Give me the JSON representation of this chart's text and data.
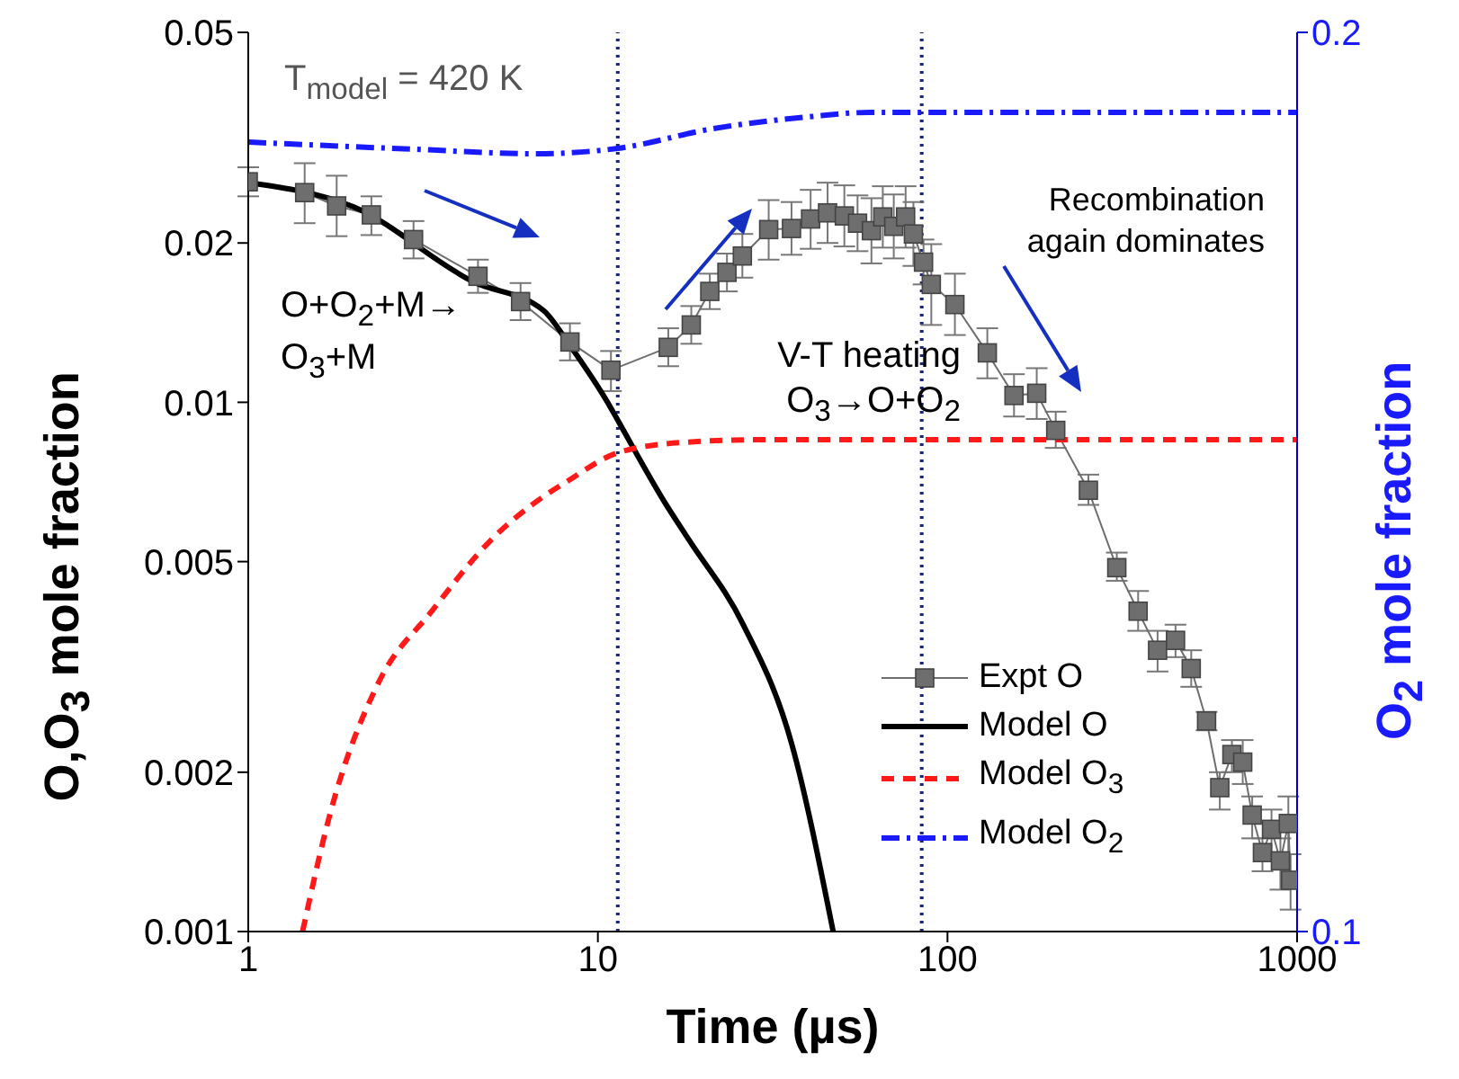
{
  "chart_data": {
    "type": "line",
    "xlabel": "Time (µs)",
    "ylabel": "O,O$_{3}$ mole fraction",
    "y2label": "O$_{2}$ mole fraction",
    "log": "xy",
    "xlim": [
      1,
      1000
    ],
    "xticks": [
      1,
      10,
      100,
      1000
    ],
    "ylim": [
      0.001,
      0.05
    ],
    "yticks": [
      0.001,
      0.002,
      0.005,
      0.01,
      0.02,
      0.05
    ],
    "y2lim": [
      0.1,
      0.2
    ],
    "y2ticks": [
      0.1,
      0.2
    ],
    "legend": "bottom right",
    "series": [
      {
        "name": "Expt O",
        "color": "#6e6e6e",
        "marker": "square",
        "line_style": "solid",
        "x": [
          1,
          1.45,
          1.79,
          2.25,
          2.97,
          4.54,
          6.01,
          8.32,
          10.9,
          15.9,
          18.5,
          20.9,
          23.4,
          25.9,
          30.8,
          35.8,
          40.6,
          45.4,
          50.7,
          55.3,
          60.6,
          65.3,
          70.2,
          75.9,
          79.9,
          85.4,
          89.9,
          105,
          130,
          155,
          180,
          204,
          253,
          305,
          351,
          399,
          449,
          498,
          551,
          601,
          651,
          699,
          744,
          796,
          845,
          896,
          944,
          958
        ],
        "values": [
          0.0261,
          0.0249,
          0.0235,
          0.0226,
          0.0203,
          0.0173,
          0.0155,
          0.013,
          0.0115,
          0.0127,
          0.014,
          0.0162,
          0.0176,
          0.0189,
          0.0212,
          0.0213,
          0.0222,
          0.0228,
          0.0225,
          0.0218,
          0.0211,
          0.0224,
          0.0215,
          0.0224,
          0.0208,
          0.0184,
          0.0167,
          0.0153,
          0.0124,
          0.0103,
          0.0104,
          0.00885,
          0.00682,
          0.00487,
          0.00403,
          0.0034,
          0.00355,
          0.00314,
          0.0025,
          0.00187,
          0.00216,
          0.00209,
          0.00166,
          0.00141,
          0.00156,
          0.00136,
          0.0016,
          0.00125
        ],
        "errors": [
          [
            0.0245,
            0.0278
          ],
          [
            0.0218,
            0.0283
          ],
          [
            0.0206,
            0.0268
          ],
          [
            0.0207,
            0.0245
          ],
          [
            0.0187,
            0.022
          ],
          [
            0.0161,
            0.0186
          ],
          [
            0.0143,
            0.0168
          ],
          [
            0.012,
            0.0141
          ],
          [
            0.0105,
            0.0125
          ],
          [
            0.0117,
            0.0138
          ],
          [
            0.0129,
            0.0152
          ],
          [
            0.015,
            0.0175
          ],
          [
            0.0162,
            0.0191
          ],
          [
            0.0172,
            0.0208
          ],
          [
            0.0186,
            0.0241
          ],
          [
            0.019,
            0.0239
          ],
          [
            0.0195,
            0.0252
          ],
          [
            0.02,
            0.026
          ],
          [
            0.0197,
            0.0257
          ],
          [
            0.0193,
            0.0246
          ],
          [
            0.0183,
            0.0243
          ],
          [
            0.0196,
            0.0256
          ],
          [
            0.0187,
            0.0247
          ],
          [
            0.0196,
            0.0256
          ],
          [
            0.0181,
            0.0239
          ],
          [
            0.0167,
            0.0203
          ],
          [
            0.014,
            0.0199
          ],
          [
            0.0134,
            0.0175
          ],
          [
            0.0111,
            0.0138
          ],
          [
            0.0094,
            0.0113
          ],
          [
            0.0093,
            0.0116
          ],
          [
            0.0082,
            0.0096
          ],
          [
            0.0064,
            0.0073
          ],
          [
            0.0046,
            0.0052
          ],
          [
            0.0037,
            0.0044
          ],
          [
            0.0031,
            0.0037
          ],
          [
            0.0033,
            0.0038
          ],
          [
            0.0029,
            0.0034
          ],
          [
            0.0024,
            0.0026
          ],
          [
            0.0017,
            0.002
          ],
          [
            0.002,
            0.0023
          ],
          [
            0.0019,
            0.0023
          ],
          [
            0.0015,
            0.0018
          ],
          [
            0.0013,
            0.0015
          ],
          [
            0.0014,
            0.0017
          ],
          [
            0.0012,
            0.0015
          ],
          [
            0.0014,
            0.0018
          ],
          [
            0.0011,
            0.0014
          ]
        ]
      },
      {
        "name": "Model O",
        "color": "#000000",
        "marker": "none",
        "line_style": "solid",
        "x": [
          1,
          2,
          4.4,
          7,
          8.32,
          10.9,
          11.35,
          15.6,
          18.2,
          26,
          35.8,
          47.1
        ],
        "values": [
          0.026,
          0.0234,
          0.0169,
          0.0149,
          0.0128,
          0.00975,
          0.0093,
          0.00644,
          0.0055,
          0.00381,
          0.00227,
          0.001
        ]
      },
      {
        "name": "Model O$_{3}$",
        "color": "#ff1a1a",
        "marker": "none",
        "line_style": "dashed",
        "x": [
          1.43,
          1.71,
          2.35,
          3.35,
          4.97,
          6.56,
          8.31,
          11.4,
          17.6,
          30,
          100,
          1000
        ],
        "values": [
          0.001,
          0.00166,
          0.00294,
          0.00403,
          0.00551,
          0.00644,
          0.00714,
          0.00803,
          0.0084,
          0.0085,
          0.0085,
          0.0085
        ]
      },
      {
        "name": "Model O$_{2}$",
        "axis": "y2",
        "color": "#1a1aff",
        "marker": "none",
        "line_style": "dashdot",
        "x": [
          1,
          3,
          6.6,
          11.4,
          21.4,
          40,
          60,
          1000
        ],
        "values": [
          0.1878,
          0.187,
          0.1865,
          0.1871,
          0.1893,
          0.1906,
          0.1911,
          0.1911
        ]
      }
    ],
    "ref_lines": [
      {
        "axis": "x",
        "value": 11.4,
        "color": "#1a237e",
        "line_style": "dotted"
      },
      {
        "axis": "x",
        "value": 84.4,
        "color": "#1a237e",
        "line_style": "dotted"
      }
    ],
    "annotations": [
      "T$_{model}$ = 420 K",
      "O+O$_{2}$+M→ O$_{3}$+M",
      "V-T heating O$_{3}$→O+O$_{2}$",
      "Recombination again dominates"
    ]
  }
}
